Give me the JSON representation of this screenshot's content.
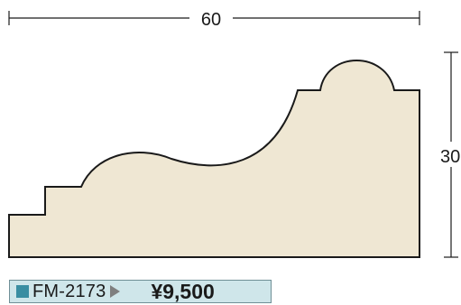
{
  "dimensions": {
    "width": "60",
    "height": "30"
  },
  "product": {
    "code": "FM-2173",
    "price": "¥9,500",
    "swatch_color": "#3a8ea2",
    "box_color": "#cfe6ea"
  },
  "profile": {
    "fill_color": "#efe7d3",
    "outline_color": "#1a1a1a"
  }
}
